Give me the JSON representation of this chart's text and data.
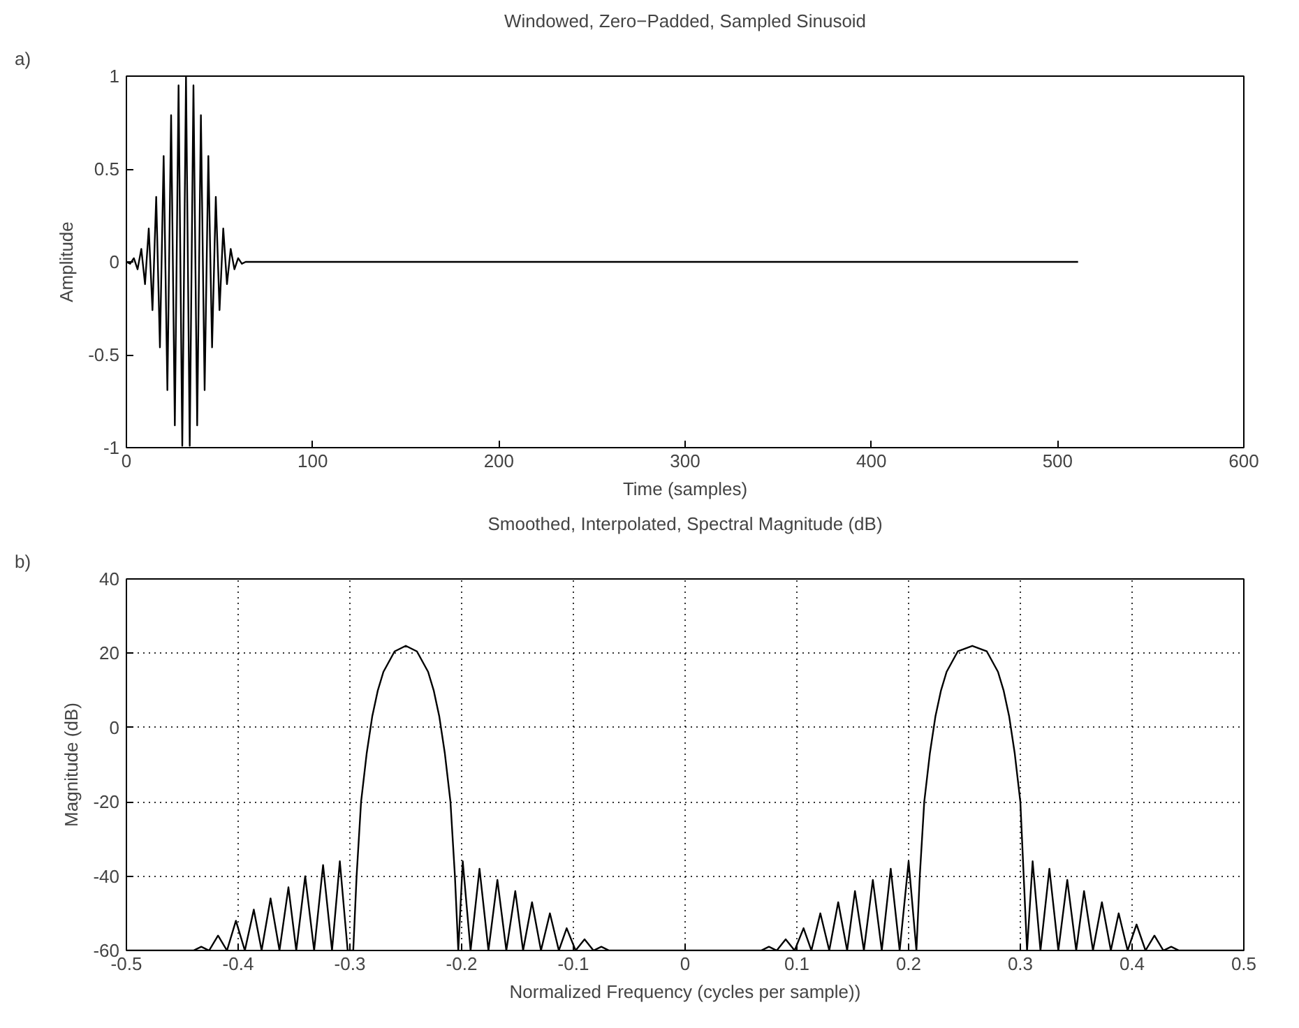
{
  "chart_data": [
    {
      "type": "line",
      "title": "Windowed, Zero−Padded, Sampled Sinusoid",
      "xlabel": "Time (samples)",
      "ylabel": "Amplitude",
      "annotations": [
        "a)"
      ],
      "color": "#000000",
      "x": [
        0,
        2,
        4,
        6,
        8,
        10,
        12,
        14,
        16,
        18,
        20,
        22,
        24,
        26,
        28,
        30,
        32,
        34,
        36,
        38,
        40,
        42,
        44,
        46,
        48,
        50,
        52,
        54,
        56,
        58,
        60,
        62,
        64,
        511
      ],
      "values": [
        0,
        -0.01,
        0.02,
        -0.04,
        0.07,
        -0.12,
        0.18,
        -0.26,
        0.35,
        -0.46,
        0.57,
        -0.69,
        0.79,
        -0.88,
        0.95,
        -0.99,
        1.0,
        -0.99,
        0.95,
        -0.88,
        0.79,
        -0.69,
        0.57,
        -0.46,
        0.35,
        -0.26,
        0.18,
        -0.12,
        0.07,
        -0.04,
        0.02,
        -0.01,
        0,
        0
      ],
      "xlim": [
        0,
        600
      ],
      "ylim": [
        -1,
        1
      ],
      "xticks": [
        0,
        100,
        200,
        300,
        400,
        500,
        600
      ],
      "yticks": [
        -1,
        -0.5,
        0,
        0.5,
        1
      ],
      "grid": false
    },
    {
      "type": "line",
      "title": "Smoothed, Interpolated, Spectral Magnitude (dB)",
      "xlabel": "Normalized Frequency (cycles per sample))",
      "ylabel": "Magnitude (dB)",
      "annotations": [
        "b)"
      ],
      "color": "#000000",
      "x": [
        -0.5,
        -0.44,
        -0.433,
        -0.426,
        -0.418,
        -0.41,
        -0.402,
        -0.394,
        -0.386,
        -0.379,
        -0.371,
        -0.363,
        -0.355,
        -0.348,
        -0.34,
        -0.332,
        -0.324,
        -0.316,
        -0.309,
        -0.302,
        -0.297,
        -0.294,
        -0.29,
        -0.285,
        -0.28,
        -0.275,
        -0.27,
        -0.26,
        -0.25,
        -0.24,
        -0.23,
        -0.225,
        -0.22,
        -0.215,
        -0.21,
        -0.206,
        -0.203,
        -0.199,
        -0.192,
        -0.184,
        -0.176,
        -0.168,
        -0.16,
        -0.152,
        -0.145,
        -0.137,
        -0.129,
        -0.121,
        -0.113,
        -0.106,
        -0.098,
        -0.09,
        -0.082,
        -0.075,
        -0.068,
        0.068,
        0.075,
        0.082,
        0.09,
        0.098,
        0.106,
        0.113,
        0.121,
        0.129,
        0.137,
        0.145,
        0.152,
        0.16,
        0.168,
        0.176,
        0.184,
        0.192,
        0.2,
        0.207,
        0.21,
        0.214,
        0.219,
        0.224,
        0.229,
        0.234,
        0.244,
        0.257,
        0.27,
        0.28,
        0.285,
        0.29,
        0.295,
        0.3,
        0.303,
        0.306,
        0.311,
        0.318,
        0.326,
        0.334,
        0.342,
        0.35,
        0.357,
        0.365,
        0.373,
        0.381,
        0.388,
        0.396,
        0.404,
        0.412,
        0.42,
        0.428,
        0.435,
        0.442,
        0.5
      ],
      "values": [
        -60,
        -60,
        -59,
        -60,
        -56,
        -60,
        -52,
        -60,
        -49,
        -60,
        -46,
        -60,
        -43,
        -60,
        -40,
        -60,
        -37,
        -60,
        -36,
        -60,
        -60,
        -40,
        -20,
        -7,
        3,
        10,
        15,
        20.5,
        22,
        20.5,
        15,
        10,
        3,
        -7,
        -20,
        -40,
        -60,
        -36,
        -60,
        -38,
        -60,
        -41,
        -60,
        -44,
        -60,
        -47,
        -60,
        -50,
        -60,
        -54,
        -60,
        -57,
        -60,
        -59,
        -60,
        -60,
        -59,
        -60,
        -57,
        -60,
        -54,
        -60,
        -50,
        -60,
        -47,
        -60,
        -44,
        -60,
        -41,
        -60,
        -38,
        -60,
        -36,
        -60,
        -40,
        -20,
        -7,
        3,
        10,
        15,
        20.5,
        22,
        20.5,
        15,
        10,
        3,
        -7,
        -20,
        -40,
        -60,
        -36,
        -60,
        -38,
        -60,
        -41,
        -60,
        -44,
        -60,
        -47,
        -60,
        -50,
        -60,
        -53,
        -60,
        -56,
        -60,
        -59,
        -60,
        -60
      ],
      "xlim": [
        -0.5,
        0.5
      ],
      "ylim": [
        -60,
        40
      ],
      "xticks": [
        -0.5,
        -0.4,
        -0.3,
        -0.2,
        -0.1,
        0,
        0.1,
        0.2,
        0.3,
        0.4,
        0.5
      ],
      "yticks": [
        -60,
        -40,
        -20,
        0,
        20,
        40
      ],
      "grid": true
    }
  ]
}
